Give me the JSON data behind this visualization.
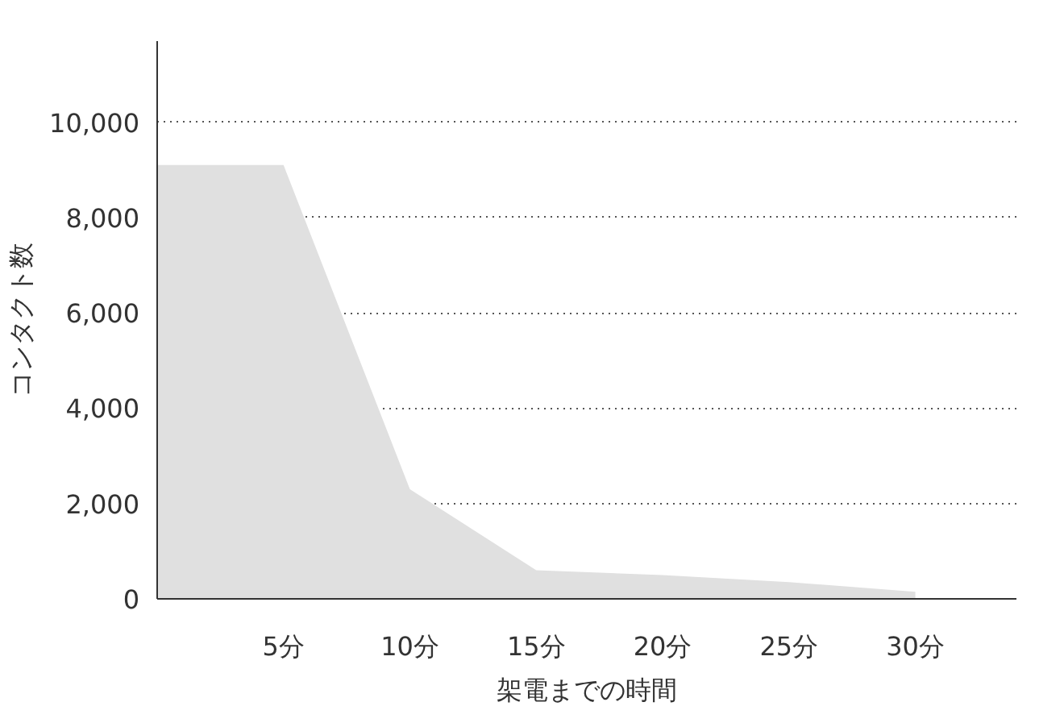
{
  "chart_data": {
    "type": "area",
    "xlabel": "架電までの時間",
    "ylabel": "コンタクト数",
    "x": [
      0,
      5,
      10,
      15,
      20,
      25,
      30
    ],
    "series": [
      {
        "color": "#e0e0e0",
        "values": [
          9100,
          9100,
          2300,
          600,
          500,
          350,
          150
        ]
      }
    ],
    "xlim": [
      0,
      34
    ],
    "ylim": [
      0,
      11700
    ],
    "xticks": [
      {
        "value": 5,
        "label": "5分"
      },
      {
        "value": 10,
        "label": "10分"
      },
      {
        "value": 15,
        "label": "15分"
      },
      {
        "value": 20,
        "label": "20分"
      },
      {
        "value": 25,
        "label": "25分"
      },
      {
        "value": 30,
        "label": "30分"
      }
    ],
    "yticks": [
      0,
      {
        "value": 2000,
        "label": "2,000"
      },
      {
        "value": 4000,
        "label": "4,000"
      },
      {
        "value": 6000,
        "label": "6,000"
      },
      {
        "value": 8000,
        "label": "8,000"
      },
      {
        "value": 10000,
        "label": "10,000"
      }
    ],
    "grid": "y"
  }
}
